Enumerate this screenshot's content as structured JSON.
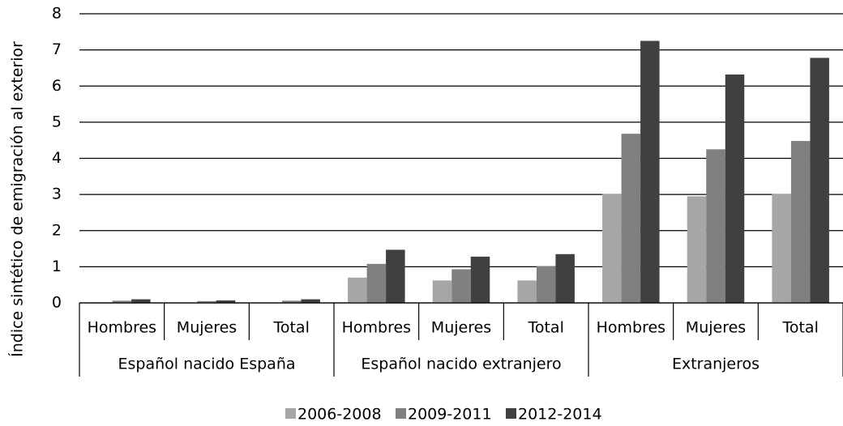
{
  "chart_data": {
    "type": "bar",
    "ylabel": "Índice sintético de emigración al exterior",
    "groups": [
      {
        "name": "Español nacido España",
        "categories": [
          "Hombres",
          "Mujeres",
          "Total"
        ]
      },
      {
        "name": "Español nacido extranjero",
        "categories": [
          "Hombres",
          "Mujeres",
          "Total"
        ]
      },
      {
        "name": "Extranjeros",
        "categories": [
          "Hombres",
          "Mujeres",
          "Total"
        ]
      }
    ],
    "series": [
      {
        "name": "2006-2008",
        "color": "#a6a6a6",
        "values": [
          0.02,
          0.01,
          0.01,
          0.7,
          0.62,
          0.62,
          3.02,
          2.95,
          3.02
        ]
      },
      {
        "name": "2009-2011",
        "color": "#808080",
        "values": [
          0.06,
          0.05,
          0.06,
          1.08,
          0.93,
          1.02,
          4.68,
          4.25,
          4.48
        ]
      },
      {
        "name": "2012-2014",
        "color": "#404040",
        "values": [
          0.1,
          0.07,
          0.1,
          1.47,
          1.28,
          1.35,
          7.25,
          6.32,
          6.78
        ]
      }
    ],
    "ylim": [
      0,
      8
    ],
    "yticks": [
      0,
      1,
      2,
      3,
      4,
      5,
      6,
      7,
      8
    ],
    "grid": true,
    "legend": "bottom"
  }
}
